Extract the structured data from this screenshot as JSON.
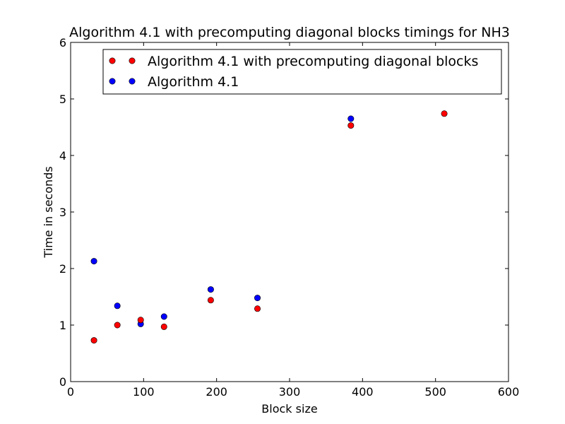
{
  "chart_data": {
    "type": "scatter",
    "title": "Algorithm 4.1 with precomputing diagonal blocks timings for NH3",
    "xlabel": "Block size",
    "ylabel": "Time in seconds",
    "xlim": [
      0,
      600
    ],
    "ylim": [
      0,
      6
    ],
    "xticks": [
      "0",
      "100",
      "200",
      "300",
      "400",
      "500",
      "600"
    ],
    "yticks": [
      "0",
      "1",
      "2",
      "3",
      "4",
      "5",
      "6"
    ],
    "grid": false,
    "legend_position": "top-right",
    "series": [
      {
        "name": "Algorithm 4.1 with precomputing diagonal blocks",
        "color": "#ff0000",
        "x": [
          32,
          64,
          96,
          128,
          192,
          256,
          384,
          512
        ],
        "y": [
          0.73,
          1.0,
          1.09,
          0.97,
          1.44,
          1.29,
          4.53,
          4.74
        ]
      },
      {
        "name": "Algorithm 4.1",
        "color": "#0000ff",
        "x": [
          32,
          64,
          96,
          128,
          192,
          256,
          384
        ],
        "y": [
          2.13,
          1.34,
          1.02,
          1.15,
          1.63,
          1.48,
          4.65
        ]
      }
    ]
  }
}
